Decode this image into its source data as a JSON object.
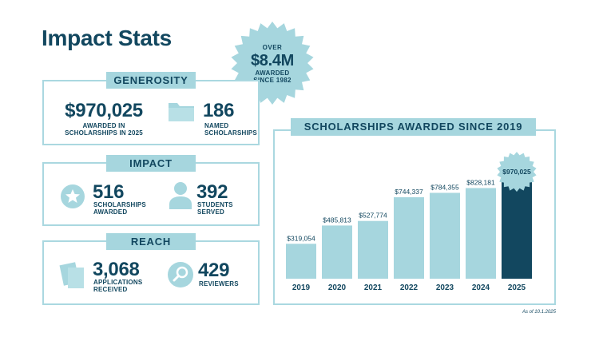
{
  "title": "Impact Stats",
  "badge": {
    "line1": "OVER",
    "amount": "$8.4M",
    "line3": "AWARDED",
    "line4": "SINCE 1982"
  },
  "generosity": {
    "label": "GENEROSITY",
    "stat1": {
      "value": "$970,025",
      "caption_line1": "AWARDED IN",
      "caption_line2": "SCHOLARSHIPS IN 2025"
    },
    "stat2": {
      "value": "186",
      "caption_line1": "NAMED",
      "caption_line2": "SCHOLARSHIPS",
      "icon": "folder-icon"
    }
  },
  "impact": {
    "label": "IMPACT",
    "stat1": {
      "value": "516",
      "caption_line1": "SCHOLARSHIPS",
      "caption_line2": "AWARDED",
      "icon": "star-icon"
    },
    "stat2": {
      "value": "392",
      "caption_line1": "STUDENTS",
      "caption_line2": "SERVED",
      "icon": "person-icon"
    }
  },
  "reach": {
    "label": "REACH",
    "stat1": {
      "value": "3,068",
      "caption_line1": "APPLICATIONS",
      "caption_line2": "RECEIVED",
      "icon": "documents-icon"
    },
    "stat2": {
      "value": "429",
      "caption_line1": "REVIEWERS",
      "caption_line2": "",
      "icon": "magnifier-icon"
    }
  },
  "note": "As of 10.1.2025",
  "colors": {
    "dark": "#12475f",
    "light": "#a6d6de",
    "border": "#aad8e0"
  },
  "chart_data": {
    "type": "bar",
    "title": "SCHOLARSHIPS AWARDED SINCE 2019",
    "categories": [
      "2019",
      "2020",
      "2021",
      "2022",
      "2023",
      "2024",
      "2025"
    ],
    "values": [
      319054,
      485813,
      527774,
      744337,
      784355,
      828181,
      970025
    ],
    "value_labels": [
      "$319,054",
      "$485,813",
      "$527,774",
      "$744,337",
      "$784,355",
      "$828,181",
      "$970,025"
    ],
    "highlight_index": 6,
    "ylim": [
      0,
      1000000
    ],
    "grid": false,
    "xlabel": "",
    "ylabel": ""
  }
}
